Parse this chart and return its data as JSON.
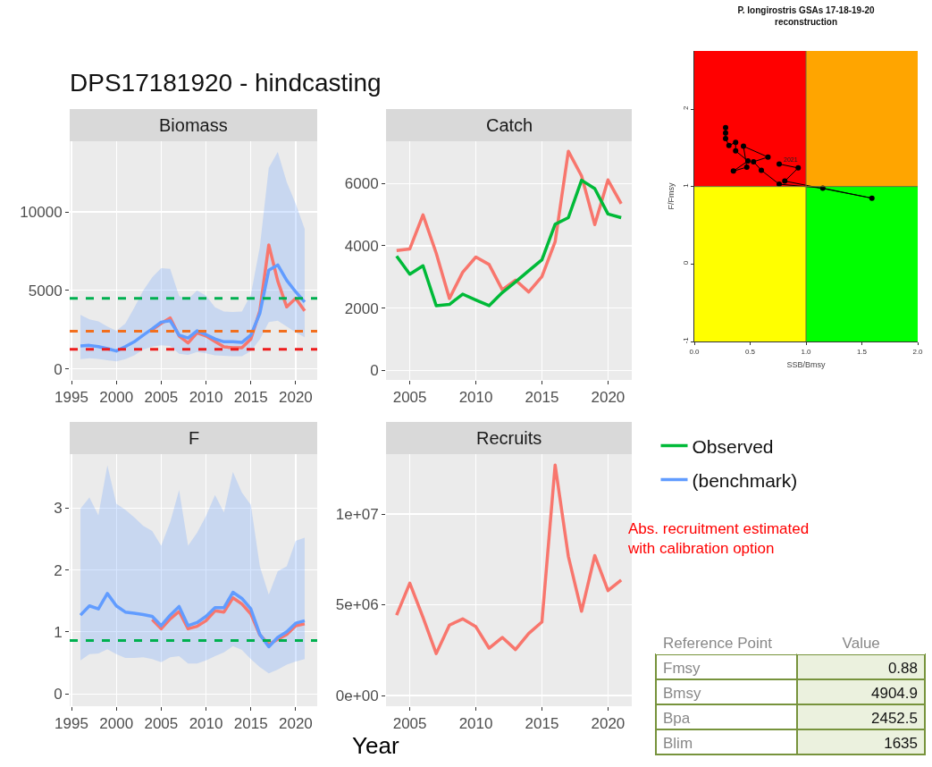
{
  "chart_data": [
    {
      "type": "line",
      "title": "DPS17181920 - hindcasting",
      "subtitle": "Biomass",
      "x": [
        1996,
        1997,
        1998,
        1999,
        2000,
        2001,
        2002,
        2003,
        2004,
        2005,
        2006,
        2007,
        2008,
        2009,
        2010,
        2011,
        2012,
        2013,
        2014,
        2015,
        2016,
        2017,
        2018,
        2019,
        2020,
        2021
      ],
      "xlim": [
        1994.8,
        2022.4
      ],
      "xticks": [
        1995,
        2000,
        2005,
        2010,
        2015,
        2020
      ],
      "ylim": [
        -700,
        14500
      ],
      "yticks": [
        0,
        5000,
        10000
      ],
      "grid": true,
      "line_style": "solid",
      "series": [
        {
          "color": "#f8766d",
          "x": [
            2004,
            2005,
            2006,
            2007,
            2008,
            2009,
            2010,
            2011,
            2012,
            2013,
            2014,
            2015,
            2016,
            2017,
            2018,
            2019,
            2020,
            2021
          ],
          "values": [
            2500,
            2900,
            3250,
            2100,
            1650,
            2300,
            2100,
            1750,
            1400,
            1350,
            1350,
            1900,
            3700,
            7900,
            5600,
            3950,
            4500,
            3700
          ]
        },
        {
          "color": "#619cff",
          "values": [
            1470,
            1500,
            1420,
            1290,
            1140,
            1420,
            1730,
            2150,
            2550,
            2980,
            3070,
            2150,
            1970,
            2430,
            2190,
            1910,
            1730,
            1730,
            1690,
            2150,
            3530,
            6290,
            6620,
            5640,
            4910,
            4260
          ],
          "lower": [
            620,
            680,
            640,
            550,
            480,
            620,
            860,
            1230,
            1420,
            1510,
            1470,
            960,
            900,
            1080,
            990,
            860,
            830,
            810,
            810,
            1140,
            1870,
            2980,
            3070,
            2700,
            2330,
            2020
          ],
          "upper": [
            3440,
            3160,
            3030,
            2700,
            2430,
            2890,
            3900,
            5000,
            5830,
            6410,
            6380,
            4630,
            4450,
            5000,
            4670,
            3930,
            3660,
            3620,
            3660,
            4720,
            7760,
            12810,
            13820,
            11890,
            10510,
            8910
          ]
        }
      ],
      "ref_lines": [
        {
          "axis": "y",
          "value": 4500,
          "color": "#00b050",
          "line_style": "dashed"
        },
        {
          "axis": "y",
          "value": 2400,
          "color": "#f26f1d",
          "line_style": "dashed"
        },
        {
          "axis": "y",
          "value": 1250,
          "color": "#ee1c1c",
          "line_style": "dashed"
        }
      ]
    },
    {
      "type": "line",
      "title": "Catch",
      "x": [
        2004,
        2005,
        2006,
        2007,
        2008,
        2009,
        2010,
        2011,
        2012,
        2013,
        2014,
        2015,
        2016,
        2017,
        2018,
        2019,
        2020,
        2021
      ],
      "xlim": [
        2003.2,
        2021.8
      ],
      "xticks": [
        2005,
        2010,
        2015,
        2020
      ],
      "ylim": [
        -300,
        7350
      ],
      "yticks": [
        0,
        2000,
        4000,
        6000
      ],
      "grid": true,
      "line_style": "solid",
      "legend": "right",
      "series": [
        {
          "color": "#f8766d",
          "values": [
            3850,
            3900,
            4990,
            3760,
            2310,
            3150,
            3640,
            3400,
            2590,
            2900,
            2520,
            3010,
            4130,
            7030,
            6240,
            4680,
            6110,
            5350
          ]
        },
        {
          "name": "Observed",
          "color": "#00ba38",
          "values": [
            3670,
            3090,
            3360,
            2080,
            2120,
            2450,
            2260,
            2080,
            2500,
            2840,
            3200,
            3550,
            4690,
            4900,
            6100,
            5830,
            5020,
            4900
          ]
        }
      ]
    },
    {
      "type": "line",
      "title": "F",
      "x": [
        1996,
        1997,
        1998,
        1999,
        2000,
        2001,
        2002,
        2003,
        2004,
        2005,
        2006,
        2007,
        2008,
        2009,
        2010,
        2011,
        2012,
        2013,
        2014,
        2015,
        2016,
        2017,
        2018,
        2019,
        2020,
        2021
      ],
      "xlim": [
        1994.8,
        2022.4
      ],
      "xticks": [
        1995,
        2000,
        2005,
        2010,
        2015,
        2020
      ],
      "ylim": [
        -0.2,
        3.87
      ],
      "yticks": [
        0,
        1,
        2,
        3
      ],
      "grid": true,
      "line_style": "solid",
      "legend": "right",
      "series": [
        {
          "color": "#f8766d",
          "x": [
            2004,
            2005,
            2006,
            2007,
            2008,
            2009,
            2010,
            2011,
            2012,
            2013,
            2014,
            2015,
            2016,
            2017,
            2018,
            2019,
            2020,
            2021
          ],
          "values": [
            1.2,
            1.05,
            1.21,
            1.33,
            1.05,
            1.09,
            1.18,
            1.34,
            1.32,
            1.55,
            1.45,
            1.29,
            0.95,
            0.8,
            0.88,
            0.96,
            1.1,
            1.13
          ]
        },
        {
          "name": "(benchmark)",
          "color": "#619cff",
          "values": [
            1.27,
            1.42,
            1.37,
            1.62,
            1.42,
            1.32,
            1.3,
            1.28,
            1.25,
            1.1,
            1.27,
            1.41,
            1.1,
            1.15,
            1.25,
            1.39,
            1.39,
            1.64,
            1.54,
            1.37,
            0.96,
            0.76,
            0.91,
            1.0,
            1.14,
            1.18
          ],
          "lower": [
            0.54,
            0.64,
            0.65,
            0.72,
            0.64,
            0.58,
            0.58,
            0.59,
            0.56,
            0.51,
            0.59,
            0.61,
            0.49,
            0.49,
            0.54,
            0.61,
            0.67,
            0.77,
            0.71,
            0.56,
            0.43,
            0.33,
            0.39,
            0.47,
            0.52,
            0.56
          ],
          "upper": [
            2.99,
            3.17,
            2.88,
            3.69,
            3.07,
            2.97,
            2.85,
            2.71,
            2.63,
            2.39,
            2.77,
            3.29,
            2.39,
            2.6,
            2.87,
            3.21,
            2.93,
            3.58,
            3.25,
            3.05,
            2.06,
            1.6,
            1.98,
            2.06,
            2.47,
            2.52
          ]
        }
      ],
      "ref_lines": [
        {
          "axis": "y",
          "value": 0.86,
          "color": "#00b050",
          "line_style": "dashed"
        }
      ]
    },
    {
      "type": "line",
      "title": "Recruits",
      "xlabel": "Year",
      "x": [
        2004,
        2005,
        2006,
        2007,
        2008,
        2009,
        2010,
        2011,
        2012,
        2013,
        2014,
        2015,
        2016,
        2017,
        2018,
        2019,
        2020,
        2021
      ],
      "xlim": [
        2003.2,
        2021.8
      ],
      "xticks": [
        2005,
        2010,
        2015,
        2020
      ],
      "ylim": [
        -590000,
        13300000
      ],
      "yticks": [
        {
          "value": 0,
          "label": "0e+00"
        },
        {
          "value": 5000000,
          "label": "5e+06"
        },
        {
          "value": 10000000,
          "label": "1e+07"
        }
      ],
      "grid": true,
      "line_style": "solid",
      "series": [
        {
          "color": "#f8766d",
          "values": [
            4430000,
            6190000,
            4300000,
            2310000,
            3880000,
            4220000,
            3790000,
            2610000,
            3200000,
            2530000,
            3420000,
            4050000,
            12700000,
            7670000,
            4640000,
            7710000,
            5780000,
            6360000
          ]
        }
      ],
      "annotations": [
        "Abs. recruitment estimated with calibration option"
      ]
    },
    {
      "type": "line",
      "title": "P. longirostris GSAs 17-18-19-20",
      "subtitle": "reconstruction",
      "xlabel": "SSB/Bmsy",
      "ylabel": "F/Fmsy",
      "xlim": [
        0,
        2
      ],
      "xticks": [
        {
          "value": 0,
          "label": "0.0"
        },
        {
          "value": 0.5,
          "label": "0.5"
        },
        {
          "value": 1,
          "label": "1.0"
        },
        {
          "value": 1.5,
          "label": "1.5"
        },
        {
          "value": 2,
          "label": "2.0"
        }
      ],
      "ylim": [
        -1,
        2.75
      ],
      "yticks": [
        -1,
        0,
        1,
        2
      ],
      "marker": "circle",
      "line_style": "solid",
      "series": [
        {
          "type": "bar",
          "x": [
            0.5,
            1.5
          ],
          "base": [
            1,
            1
          ],
          "values": [
            1.75,
            1.75
          ],
          "colors": [
            "#ff0000",
            "#ffa500"
          ]
        },
        {
          "type": "bar",
          "x": [
            0.5,
            1.5
          ],
          "base": [
            -1,
            -1
          ],
          "values": [
            2,
            2
          ],
          "colors": [
            "#ffff00",
            "#00ff00"
          ]
        },
        {
          "color": "#000000",
          "x": [
            0.28,
            0.28,
            0.28,
            0.31,
            0.37,
            0.37,
            0.48,
            0.35,
            0.47,
            0.44,
            0.66,
            0.53,
            0.6,
            0.76,
            1.15,
            1.59,
            0.81,
            0.93,
            0.76
          ],
          "values": [
            1.76,
            1.69,
            1.62,
            1.53,
            1.57,
            1.46,
            1.33,
            1.2,
            1.25,
            1.52,
            1.38,
            1.32,
            1.21,
            1.03,
            0.98,
            0.85,
            1.07,
            1.24,
            1.29
          ]
        }
      ],
      "ref_lines": [
        {
          "axis": "x",
          "value": 1,
          "color": "#6b6b3a",
          "line_style": "solid"
        },
        {
          "axis": "y",
          "value": 1,
          "color": "#6b6b3a",
          "line_style": "solid"
        }
      ],
      "annotations": [
        {
          "text": "2021",
          "x": 0.76,
          "y": 1.29
        }
      ]
    },
    {
      "type": "other",
      "xlabel": "Reference Point",
      "ylabel": "Value",
      "data_labels": true,
      "categories": [
        "Fmsy",
        "Bmsy",
        "Bpa",
        "Blim"
      ],
      "values": [
        0.88,
        4904.9,
        2452.5,
        1635
      ]
    }
  ]
}
